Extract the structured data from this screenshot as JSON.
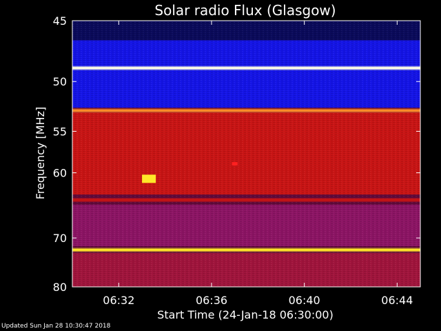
{
  "footer": "Updated Sun Jan 28 10:30:47 2018",
  "chart_data": {
    "type": "heatmap",
    "title": "Solar radio Flux (Glasgow)",
    "xlabel": "Start Time (24-Jan-18 06:30:00)",
    "ylabel": "Frequency [MHz]",
    "x_ticks": [
      "06:32",
      "06:36",
      "06:40",
      "06:44"
    ],
    "x_tick_minutes": [
      2,
      6,
      10,
      14
    ],
    "xlim_minutes": [
      0,
      15
    ],
    "y_ticks": [
      45,
      50,
      55,
      60,
      70,
      80
    ],
    "ylim": [
      45,
      80
    ],
    "y_scale": "reciprocal",
    "colormap": "blue-red-yellow-white",
    "background": "#000000",
    "axis_color": "#ffffff",
    "bright_bands_mhz": [
      {
        "freq": 48.8,
        "level": "white"
      },
      {
        "freq": 52.8,
        "level": "orange"
      },
      {
        "freq": 63.8,
        "level": "red"
      },
      {
        "freq": 72.2,
        "level": "yellow"
      }
    ],
    "quiet_regions_mhz": [
      {
        "from": 45,
        "to": 46.5,
        "level": "dark-blue"
      },
      {
        "from": 46.5,
        "to": 52.5,
        "level": "blue"
      },
      {
        "from": 53,
        "to": 63,
        "level": "red"
      },
      {
        "from": 64.5,
        "to": 71.5,
        "level": "purple-red"
      },
      {
        "from": 72.8,
        "to": 80,
        "level": "red-purple"
      }
    ],
    "burst": {
      "time_minutes": 3.3,
      "freq": 60.8,
      "level": "yellow"
    },
    "spot": {
      "time_minutes": 7.0,
      "freq": 58.8,
      "level": "red"
    }
  }
}
